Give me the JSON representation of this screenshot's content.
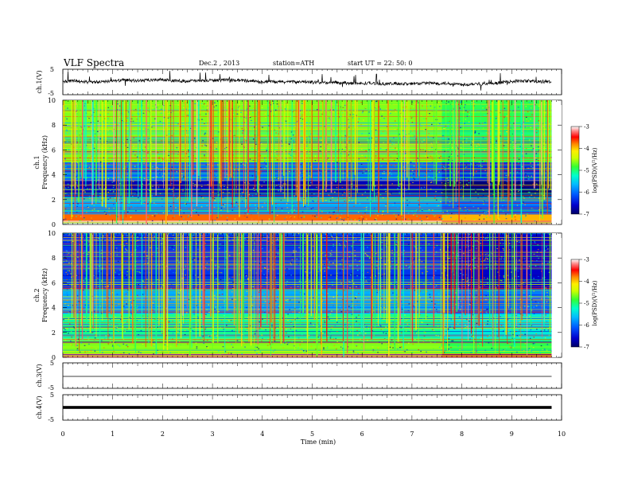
{
  "header": {
    "title": "VLF Spectra",
    "date": "Dec.2 , 2013",
    "station": "station=ATH",
    "start": "start  UT =  22: 50: 0"
  },
  "colors": {
    "spectrum": [
      "#000066",
      "#0000cc",
      "#0055ff",
      "#00bbff",
      "#00ffcc",
      "#33ff33",
      "#ccff00",
      "#ffee00",
      "#ff8800",
      "#ff0000",
      "#ff8888",
      "#ffffff"
    ]
  },
  "chart_data": [
    {
      "type": "line",
      "name": "ch1-waveform",
      "ylabel": "ch.1(V)",
      "ylim": [
        -5,
        5
      ],
      "yticks": [
        "5",
        "-5"
      ],
      "description_values": {
        "baseline": 0.3,
        "noise_amplitude": 0.6
      }
    },
    {
      "type": "heatmap",
      "name": "ch1-spectrogram",
      "ylabel": "ch.1 Frequency (kHz)",
      "ylim": [
        0,
        10
      ],
      "yticks": [
        "0",
        "2",
        "4",
        "6",
        "8",
        "10"
      ],
      "xlim": [
        0,
        10
      ],
      "xdata_max": 9.8,
      "colorbar": {
        "label": "log(PSD)(V²/Hz)",
        "range": [
          -7,
          -3
        ],
        "ticks": [
          "-3",
          "-4",
          "-5",
          "-6",
          "-7"
        ]
      },
      "bands_kHz": [
        {
          "f": [
            0.0,
            0.3
          ],
          "level": -3.2
        },
        {
          "f": [
            0.3,
            0.8
          ],
          "level": -4.0
        },
        {
          "f": [
            0.8,
            2.2
          ],
          "level": -6.0
        },
        {
          "f": [
            2.2,
            3.5
          ],
          "level": -6.7
        },
        {
          "f": [
            3.5,
            5.0
          ],
          "level": -6.2
        },
        {
          "f": [
            5.0,
            10.0
          ],
          "level": -5.0
        }
      ],
      "transition_time_min": 7.6
    },
    {
      "type": "heatmap",
      "name": "ch2-spectrogram",
      "ylabel": "ch.2 Frequency (kHz)",
      "ylim": [
        0,
        10
      ],
      "yticks": [
        "0",
        "2",
        "4",
        "6",
        "8",
        "10"
      ],
      "xlim": [
        0,
        10
      ],
      "xdata_max": 9.8,
      "colorbar": {
        "label": "log(PSD)(V²/Hz)",
        "range": [
          -7,
          -3
        ],
        "ticks": [
          "-3",
          "-4",
          "-5",
          "-6",
          "-7"
        ]
      },
      "bands_kHz": [
        {
          "f": [
            0.0,
            0.3
          ],
          "level": -3.5
        },
        {
          "f": [
            0.3,
            1.5
          ],
          "level": -5.0
        },
        {
          "f": [
            1.5,
            3.5
          ],
          "level": -5.4
        },
        {
          "f": [
            3.5,
            5.5
          ],
          "level": -6.0
        },
        {
          "f": [
            5.5,
            10.0
          ],
          "level": -6.4
        }
      ],
      "transition_time_min": 7.6
    },
    {
      "type": "line",
      "name": "ch3-waveform",
      "ylabel": "ch.3(V)",
      "ylim": [
        -5,
        5
      ],
      "yticks": [
        "5",
        "-5"
      ],
      "description_values": {
        "baseline": 0.0
      }
    },
    {
      "type": "line",
      "name": "ch4-waveform",
      "ylabel": "ch.4(V)",
      "ylim": [
        -5,
        5
      ],
      "yticks": [
        "5",
        "-5"
      ],
      "description_values": {
        "baseline": 0.0
      }
    }
  ],
  "xaxis": {
    "label": "Time  (min)",
    "ticks": [
      "0",
      "1",
      "2",
      "3",
      "4",
      "5",
      "6",
      "7",
      "8",
      "9",
      "10"
    ]
  }
}
